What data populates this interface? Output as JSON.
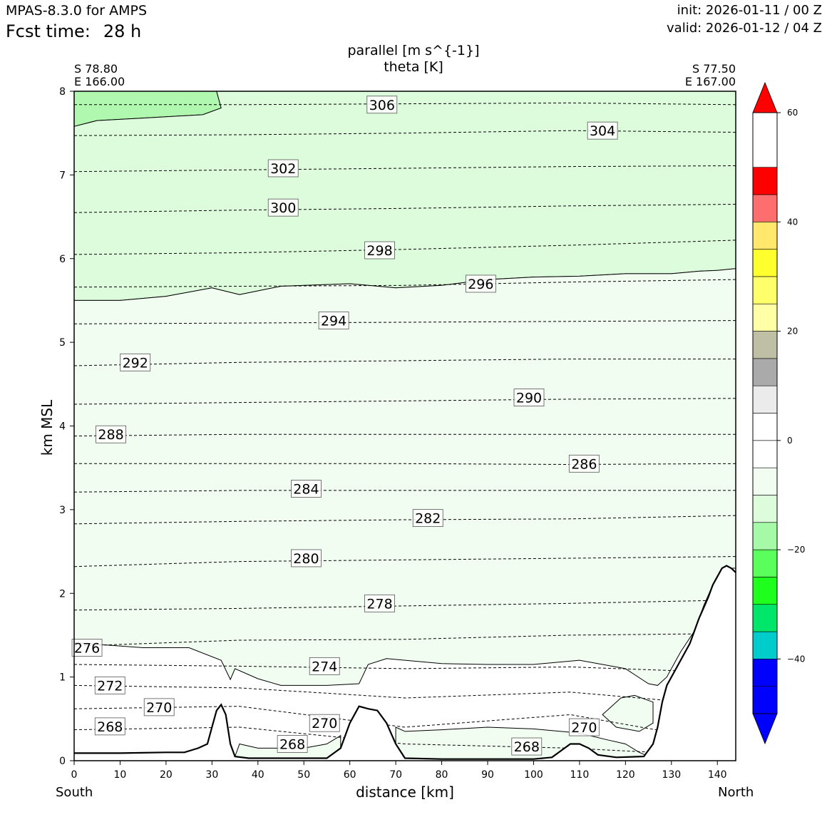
{
  "header": {
    "model_title": "MPAS-8.3.0 for AMPS",
    "fcst_label": "Fcst time:",
    "fcst_value": "28 h",
    "init": "init: 2026-01-11 / 00 Z",
    "valid": "valid: 2026-01-12 / 04 Z"
  },
  "plot": {
    "title_line1": "parallel [m s^{-1}]",
    "title_line2": "theta [K]",
    "left_lat": "S 78.80",
    "left_lon": "E 166.00",
    "right_lat": "S 77.50",
    "right_lon": "E 167.00",
    "dir_left": "South",
    "dir_right": "North"
  },
  "chart_data": {
    "type": "contour-cross-section",
    "xlabel": "distance [km]",
    "ylabel": "km MSL",
    "xlim": [
      0,
      144
    ],
    "ylim": [
      0,
      8
    ],
    "xticks": [
      0,
      10,
      20,
      30,
      40,
      50,
      60,
      70,
      80,
      90,
      100,
      110,
      120,
      130,
      140
    ],
    "yticks": [
      0,
      1,
      2,
      3,
      4,
      5,
      6,
      7,
      8
    ],
    "terrain": [
      [
        0,
        0.09
      ],
      [
        10,
        0.09
      ],
      [
        20,
        0.1
      ],
      [
        24,
        0.1
      ],
      [
        27,
        0.15
      ],
      [
        29,
        0.2
      ],
      [
        30,
        0.4
      ],
      [
        31,
        0.6
      ],
      [
        32,
        0.67
      ],
      [
        33,
        0.55
      ],
      [
        34,
        0.2
      ],
      [
        35,
        0.05
      ],
      [
        38,
        0.03
      ],
      [
        55,
        0.03
      ],
      [
        58,
        0.15
      ],
      [
        60,
        0.45
      ],
      [
        62,
        0.65
      ],
      [
        64,
        0.62
      ],
      [
        66,
        0.6
      ],
      [
        68,
        0.45
      ],
      [
        70,
        0.2
      ],
      [
        72,
        0.03
      ],
      [
        80,
        0.02
      ],
      [
        100,
        0.02
      ],
      [
        104,
        0.04
      ],
      [
        106,
        0.12
      ],
      [
        108,
        0.2
      ],
      [
        110,
        0.2
      ],
      [
        112,
        0.15
      ],
      [
        114,
        0.07
      ],
      [
        118,
        0.04
      ],
      [
        124,
        0.05
      ],
      [
        126,
        0.2
      ],
      [
        127,
        0.4
      ],
      [
        128,
        0.7
      ],
      [
        129,
        0.9
      ],
      [
        130,
        1.0
      ],
      [
        132,
        1.2
      ],
      [
        134,
        1.4
      ],
      [
        136,
        1.7
      ],
      [
        138,
        1.95
      ],
      [
        139,
        2.1
      ],
      [
        140,
        2.2
      ],
      [
        141,
        2.3
      ],
      [
        142,
        2.33
      ],
      [
        143,
        2.3
      ],
      [
        144,
        2.25
      ]
    ],
    "parallel_wind_fill_regions": [
      {
        "level": "-20 to -15",
        "color": "#b0f7b0",
        "outline": [
          [
            0,
            8
          ],
          [
            31,
            8
          ],
          [
            32,
            7.8
          ],
          [
            28,
            7.72
          ],
          [
            15,
            7.68
          ],
          [
            5,
            7.65
          ],
          [
            0,
            7.58
          ]
        ]
      },
      {
        "level": "-15 to -10",
        "color": "#dcfcdc",
        "outline": [
          [
            0,
            7.58
          ],
          [
            5,
            7.65
          ],
          [
            15,
            7.68
          ],
          [
            28,
            7.72
          ],
          [
            32,
            7.8
          ],
          [
            31,
            8
          ],
          [
            144,
            8
          ],
          [
            144,
            5.88
          ],
          [
            140,
            5.86
          ],
          [
            136,
            5.85
          ],
          [
            130,
            5.82
          ],
          [
            120,
            5.82
          ],
          [
            110,
            5.79
          ],
          [
            100,
            5.78
          ],
          [
            90,
            5.75
          ],
          [
            80,
            5.68
          ],
          [
            70,
            5.65
          ],
          [
            60,
            5.7
          ],
          [
            45,
            5.67
          ],
          [
            36,
            5.57
          ],
          [
            30,
            5.65
          ],
          [
            20,
            5.55
          ],
          [
            10,
            5.5
          ],
          [
            0,
            5.5
          ]
        ]
      },
      {
        "level": "-10 to -5",
        "color": "#f0fdf0",
        "outline": [
          [
            0,
            5.5
          ],
          [
            10,
            5.5
          ],
          [
            20,
            5.55
          ],
          [
            30,
            5.65
          ],
          [
            36,
            5.57
          ],
          [
            45,
            5.67
          ],
          [
            60,
            5.7
          ],
          [
            70,
            5.65
          ],
          [
            80,
            5.68
          ],
          [
            90,
            5.75
          ],
          [
            100,
            5.78
          ],
          [
            110,
            5.79
          ],
          [
            120,
            5.82
          ],
          [
            130,
            5.82
          ],
          [
            136,
            5.85
          ],
          [
            140,
            5.86
          ],
          [
            144,
            5.88
          ],
          [
            144,
            2.3
          ],
          [
            141,
            2.3
          ],
          [
            139,
            2.1
          ],
          [
            137,
            1.85
          ],
          [
            135,
            1.55
          ],
          [
            132,
            1.3
          ],
          [
            131,
            1.2
          ],
          [
            129,
            1.0
          ],
          [
            127,
            0.9
          ],
          [
            125,
            0.92
          ],
          [
            120,
            1.1
          ],
          [
            110,
            1.2
          ],
          [
            100,
            1.15
          ],
          [
            90,
            1.15
          ],
          [
            80,
            1.16
          ],
          [
            72,
            1.2
          ],
          [
            68,
            1.22
          ],
          [
            64,
            1.15
          ],
          [
            62,
            0.92
          ],
          [
            55,
            0.9
          ],
          [
            45,
            0.9
          ],
          [
            40,
            0.98
          ],
          [
            35,
            1.1
          ],
          [
            34,
            0.97
          ],
          [
            32,
            1.2
          ],
          [
            25,
            1.35
          ],
          [
            15,
            1.35
          ],
          [
            0,
            1.41
          ]
        ]
      },
      {
        "level": "-10 to -5",
        "color": "#f0fdf0",
        "outline": [
          [
            70,
            0.4
          ],
          [
            72,
            0.35
          ],
          [
            80,
            0.37
          ],
          [
            90,
            0.4
          ],
          [
            100,
            0.38
          ],
          [
            110,
            0.33
          ],
          [
            116,
            0.25
          ],
          [
            120,
            0.2
          ],
          [
            123,
            0.1
          ],
          [
            125,
            0.05
          ],
          [
            118,
            0.04
          ],
          [
            114,
            0.07
          ],
          [
            112,
            0.15
          ],
          [
            110,
            0.2
          ],
          [
            108,
            0.2
          ],
          [
            106,
            0.12
          ],
          [
            104,
            0.04
          ],
          [
            100,
            0.02
          ],
          [
            80,
            0.02
          ],
          [
            72,
            0.03
          ],
          [
            70,
            0.2
          ]
        ]
      },
      {
        "level": "-10 to -5",
        "color": "#f0fdf0",
        "outline": [
          [
            36,
            0.2
          ],
          [
            40,
            0.15
          ],
          [
            50,
            0.15
          ],
          [
            55,
            0.2
          ],
          [
            58,
            0.3
          ],
          [
            58,
            0.15
          ],
          [
            55,
            0.03
          ],
          [
            38,
            0.03
          ],
          [
            35,
            0.05
          ]
        ]
      },
      {
        "level": "-10 to -5",
        "color": "#f0fdf0",
        "outline": [
          [
            119,
            0.75
          ],
          [
            115,
            0.55
          ],
          [
            118,
            0.4
          ],
          [
            123,
            0.35
          ],
          [
            126,
            0.45
          ],
          [
            126,
            0.7
          ],
          [
            122,
            0.78
          ]
        ]
      }
    ],
    "theta_isentropes": [
      {
        "value": 306,
        "y": [
          7.84,
          7.84,
          7.85,
          7.86,
          7.84
        ]
      },
      {
        "value": 304,
        "y": [
          7.47,
          7.48,
          7.5,
          7.53,
          7.51
        ]
      },
      {
        "value": 302,
        "y": [
          7.04,
          7.06,
          7.08,
          7.1,
          7.11
        ]
      },
      {
        "value": 300,
        "y": [
          6.55,
          6.58,
          6.6,
          6.63,
          6.65
        ]
      },
      {
        "value": 298,
        "y": [
          6.05,
          6.07,
          6.11,
          6.16,
          6.22
        ]
      },
      {
        "value": 296,
        "y": [
          5.66,
          5.67,
          5.68,
          5.72,
          5.75
        ]
      },
      {
        "value": 294,
        "y": [
          5.22,
          5.23,
          5.24,
          5.25,
          5.26
        ]
      },
      {
        "value": 292,
        "y": [
          4.72,
          4.76,
          4.78,
          4.8,
          4.8
        ]
      },
      {
        "value": 290,
        "y": [
          4.26,
          4.28,
          4.3,
          4.32,
          4.33
        ]
      },
      {
        "value": 288,
        "y": [
          3.88,
          3.9,
          3.9,
          3.9,
          3.9
        ]
      },
      {
        "value": 286,
        "y": [
          3.55,
          3.55,
          3.55,
          3.54,
          3.55
        ]
      },
      {
        "value": 284,
        "y": [
          3.21,
          3.23,
          3.23,
          3.23,
          3.23
        ]
      },
      {
        "value": 282,
        "y": [
          2.83,
          2.86,
          2.88,
          2.89,
          2.93
        ]
      },
      {
        "value": 280,
        "y": [
          2.32,
          2.38,
          2.4,
          2.42,
          2.44
        ]
      },
      {
        "value": 278,
        "y": [
          1.8,
          1.82,
          1.85,
          1.88,
          1.92
        ]
      },
      {
        "value": 276,
        "y": [
          1.37,
          1.44,
          1.45,
          1.5,
          1.52
        ]
      },
      {
        "value": 274,
        "y": [
          1.15,
          1.13,
          1.1,
          1.12,
          1.05
        ]
      },
      {
        "value": 272,
        "y": [
          0.9,
          0.87,
          0.75,
          0.82,
          0.65
        ]
      },
      {
        "value": 270,
        "y": [
          0.62,
          0.65,
          0.4,
          0.55,
          0.2
        ]
      },
      {
        "value": 268,
        "y": [
          0.37,
          0.4,
          0.2,
          0.15,
          0.05
        ]
      }
    ],
    "contour_labels": [
      {
        "text": "306",
        "x": 67,
        "y": 7.84
      },
      {
        "text": "304",
        "x": 115,
        "y": 7.53
      },
      {
        "text": "302",
        "x": 45.5,
        "y": 7.08
      },
      {
        "text": "300",
        "x": 45.5,
        "y": 6.61
      },
      {
        "text": "298",
        "x": 66.5,
        "y": 6.1
      },
      {
        "text": "296",
        "x": 88.5,
        "y": 5.7
      },
      {
        "text": "294",
        "x": 56.5,
        "y": 5.26
      },
      {
        "text": "292",
        "x": 13.3,
        "y": 4.76
      },
      {
        "text": "290",
        "x": 99,
        "y": 4.34
      },
      {
        "text": "288",
        "x": 8,
        "y": 3.9
      },
      {
        "text": "286",
        "x": 111,
        "y": 3.55
      },
      {
        "text": "284",
        "x": 50.5,
        "y": 3.25
      },
      {
        "text": "282",
        "x": 77,
        "y": 2.9
      },
      {
        "text": "280",
        "x": 50.5,
        "y": 2.42
      },
      {
        "text": "278",
        "x": 66.5,
        "y": 1.88
      },
      {
        "text": "276",
        "x": 2.8,
        "y": 1.35
      },
      {
        "text": "274",
        "x": 54.5,
        "y": 1.13
      },
      {
        "text": "272",
        "x": 7.8,
        "y": 0.9
      },
      {
        "text": "270",
        "x": 18.5,
        "y": 0.64
      },
      {
        "text": "270",
        "x": 54.5,
        "y": 0.45
      },
      {
        "text": "270",
        "x": 111,
        "y": 0.4
      },
      {
        "text": "268",
        "x": 7.8,
        "y": 0.41
      },
      {
        "text": "268",
        "x": 47.5,
        "y": 0.2
      },
      {
        "text": "268",
        "x": 98.5,
        "y": 0.17
      }
    ],
    "colorbar": {
      "range": [
        -50,
        60
      ],
      "ticks": [
        60,
        40,
        20,
        0,
        -20,
        -40
      ],
      "tick_labels": [
        "60",
        "40",
        "20",
        "0",
        "−20",
        "−40"
      ],
      "bounds": [
        -45,
        -40,
        -35,
        -30,
        -25,
        -20,
        -15,
        -10,
        -5,
        0,
        5,
        10,
        15,
        20,
        25,
        30,
        35,
        40,
        45,
        50,
        55
      ],
      "colors": [
        "#0000ff",
        "#0000ff",
        "#00cccc",
        "#00e66b",
        "#1eff1e",
        "#5bff5b",
        "#a6f9a6",
        "#dcfcdc",
        "#f0fdf0",
        "#ffffff",
        "#ffffff",
        "#ebebeb",
        "#aaaaaa",
        "#bfbfa6",
        "#ffffa6",
        "#ffff6b",
        "#ffff2e",
        "#ffe86b",
        "#ff6e6e",
        "#ff0000"
      ],
      "under_color": "#0000ff",
      "over_color": "#ff0000"
    }
  }
}
